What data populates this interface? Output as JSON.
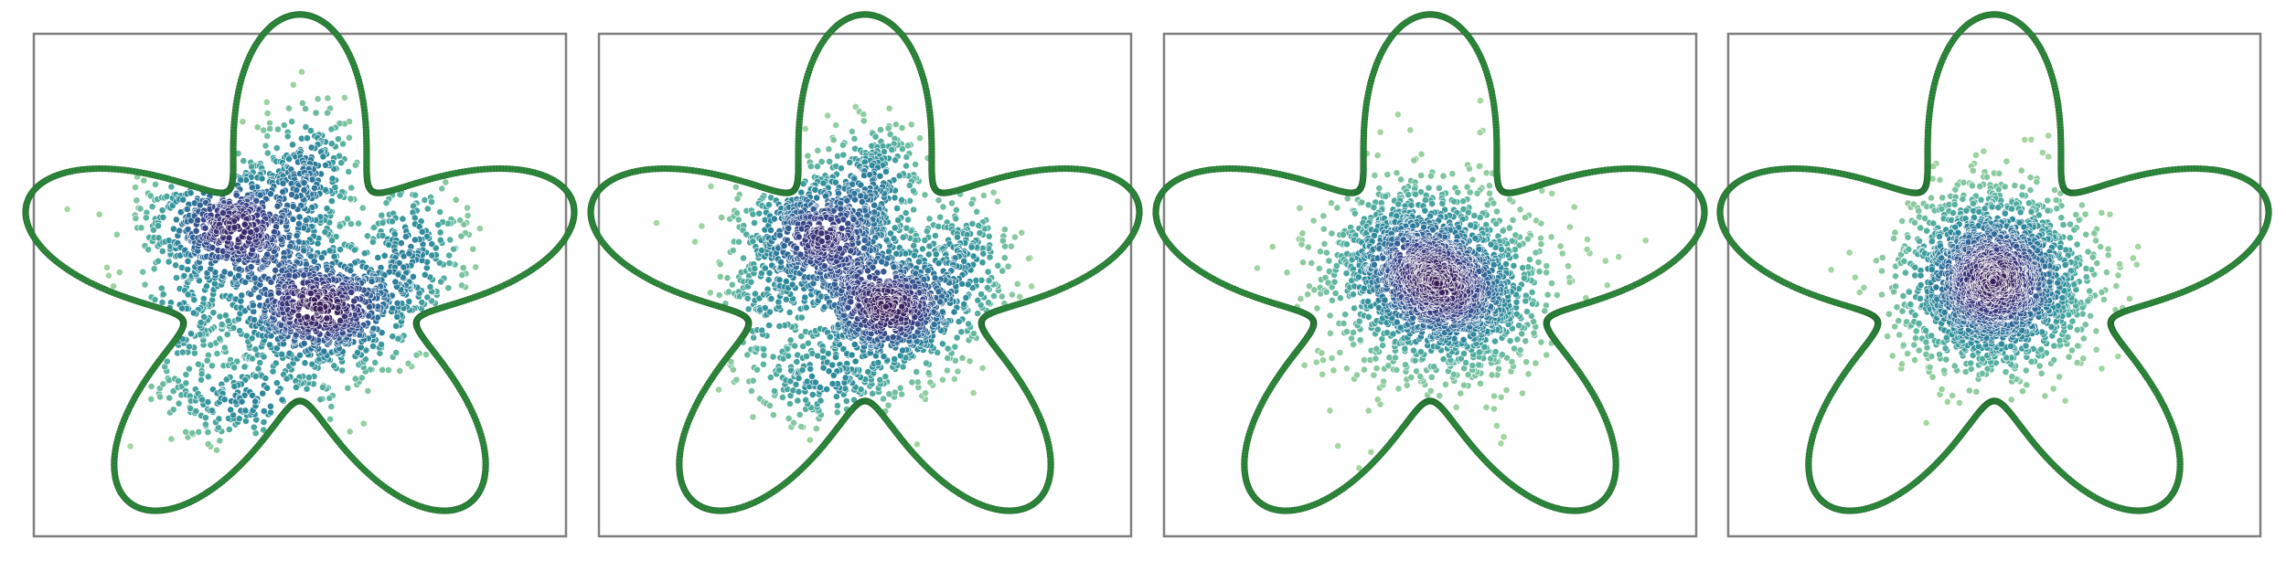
{
  "figure": {
    "panel_count": 4,
    "frame_color": "#7f7f7f",
    "background": "#ffffff"
  },
  "chart_data": [
    {
      "type": "scatter",
      "title": "",
      "xlabel": "",
      "ylabel": "",
      "axes_visible": false,
      "grid": false,
      "xlim": [
        -1.3,
        1.3
      ],
      "ylim": [
        -1.3,
        1.3
      ],
      "boundary": {
        "shape": "five-lobed star (rose curve r = 1 + 0.4*sin(5θ))",
        "r_base": 1.0,
        "lobe_amp": 0.4,
        "lobes": 5,
        "color": "#2e8b3c",
        "style": "dense marker outline"
      },
      "points": {
        "count": 2200,
        "colormap": [
          "#a8d8a0",
          "#5ab4a0",
          "#2f8f9c",
          "#2f6d9a",
          "#3a3f86",
          "#3b1f5a"
        ],
        "clusters": [
          {
            "cx": -0.32,
            "cy": 0.3,
            "sx": 0.22,
            "sy": 0.18,
            "weight": 0.32
          },
          {
            "cx": 0.1,
            "cy": -0.12,
            "sx": 0.24,
            "sy": 0.17,
            "weight": 0.36
          },
          {
            "cx": 0.05,
            "cy": 0.6,
            "sx": 0.12,
            "sy": 0.18,
            "weight": 0.08
          },
          {
            "cx": 0.55,
            "cy": 0.2,
            "sx": 0.14,
            "sy": 0.2,
            "weight": 0.09
          },
          {
            "cx": -0.25,
            "cy": -0.6,
            "sx": 0.25,
            "sy": 0.12,
            "weight": 0.1
          },
          {
            "cx": -0.6,
            "cy": -0.2,
            "sx": 0.12,
            "sy": 0.15,
            "weight": 0.05
          }
        ]
      }
    },
    {
      "type": "scatter",
      "title": "",
      "xlabel": "",
      "ylabel": "",
      "axes_visible": false,
      "grid": false,
      "xlim": [
        -1.3,
        1.3
      ],
      "ylim": [
        -1.3,
        1.3
      ],
      "boundary": {
        "shape": "five-lobed star (rose curve r = 1 + 0.4*sin(5θ))",
        "r_base": 1.0,
        "lobe_amp": 0.4,
        "lobes": 5,
        "color": "#2e8b3c",
        "style": "dense marker outline"
      },
      "points": {
        "count": 2200,
        "colormap": [
          "#a8d8a0",
          "#5ab4a0",
          "#2f8f9c",
          "#2f6d9a",
          "#3a3f86",
          "#3b1f5a"
        ],
        "clusters": [
          {
            "cx": -0.22,
            "cy": 0.25,
            "sx": 0.2,
            "sy": 0.18,
            "weight": 0.34
          },
          {
            "cx": 0.12,
            "cy": -0.12,
            "sx": 0.2,
            "sy": 0.16,
            "weight": 0.36
          },
          {
            "cx": 0.05,
            "cy": 0.55,
            "sx": 0.13,
            "sy": 0.16,
            "weight": 0.08
          },
          {
            "cx": 0.48,
            "cy": 0.15,
            "sx": 0.13,
            "sy": 0.18,
            "weight": 0.08
          },
          {
            "cx": -0.2,
            "cy": -0.5,
            "sx": 0.2,
            "sy": 0.12,
            "weight": 0.09
          },
          {
            "cx": -0.5,
            "cy": -0.15,
            "sx": 0.12,
            "sy": 0.15,
            "weight": 0.05
          }
        ]
      }
    },
    {
      "type": "scatter",
      "title": "",
      "xlabel": "",
      "ylabel": "",
      "axes_visible": false,
      "grid": false,
      "xlim": [
        -1.3,
        1.3
      ],
      "ylim": [
        -1.3,
        1.3
      ],
      "boundary": {
        "shape": "five-lobed star (rose curve r = 1 + 0.4*sin(5θ))",
        "r_base": 1.0,
        "lobe_amp": 0.4,
        "lobes": 5,
        "color": "#2e8b3c",
        "style": "dense marker outline"
      },
      "points": {
        "count": 2200,
        "colormap": [
          "#a8d8a0",
          "#5ab4a0",
          "#2f8f9c",
          "#2f6d9a",
          "#3a3f86",
          "#3b1f5a"
        ],
        "clusters": [
          {
            "cx": -0.08,
            "cy": 0.12,
            "sx": 0.2,
            "sy": 0.2,
            "weight": 0.4
          },
          {
            "cx": 0.12,
            "cy": -0.05,
            "sx": 0.2,
            "sy": 0.18,
            "weight": 0.4
          },
          {
            "cx": 0.0,
            "cy": 0.0,
            "sx": 0.38,
            "sy": 0.35,
            "weight": 0.2
          }
        ]
      }
    },
    {
      "type": "scatter",
      "title": "",
      "xlabel": "",
      "ylabel": "",
      "axes_visible": false,
      "grid": false,
      "xlim": [
        -1.3,
        1.3
      ],
      "ylim": [
        -1.3,
        1.3
      ],
      "boundary": {
        "shape": "five-lobed star (rose curve r = 1 + 0.4*sin(5θ))",
        "r_base": 1.0,
        "lobe_amp": 0.4,
        "lobes": 5,
        "color": "#2e8b3c",
        "style": "dense marker outline"
      },
      "points": {
        "count": 2200,
        "colormap": [
          "#a8d8a0",
          "#5ab4a0",
          "#2f8f9c",
          "#2f6d9a",
          "#3a3f86",
          "#3b1f5a"
        ],
        "clusters": [
          {
            "cx": 0.0,
            "cy": 0.02,
            "sx": 0.22,
            "sy": 0.22,
            "weight": 1.0
          }
        ]
      }
    }
  ]
}
